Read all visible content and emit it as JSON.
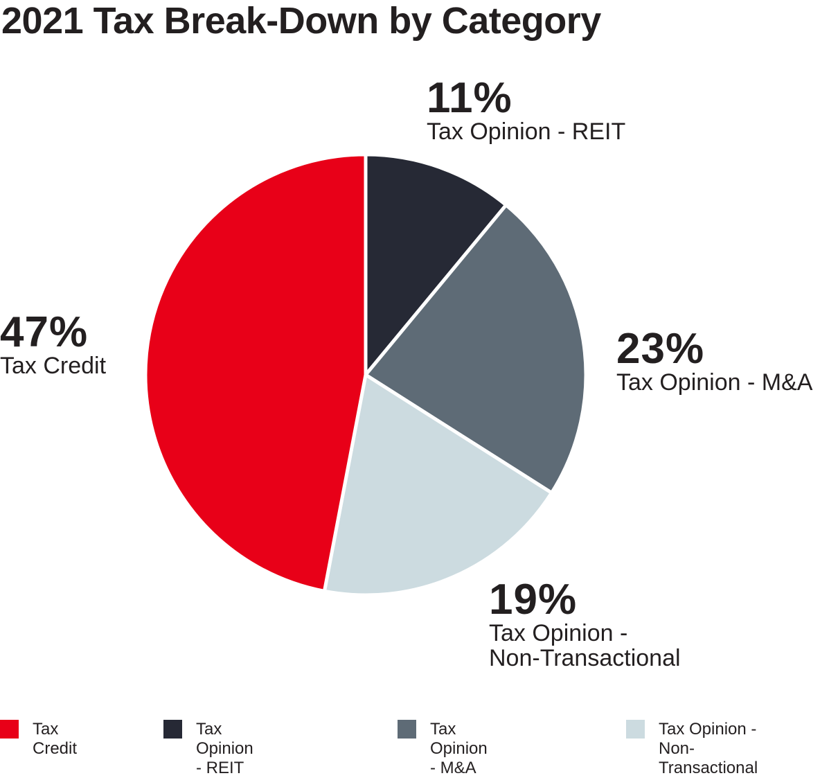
{
  "chart_data": {
    "type": "pie",
    "title": "2021 Tax Break-Down by Category",
    "slices": [
      {
        "label": "Tax Opinion - REIT",
        "value": 11,
        "display": "11%",
        "color": "#262935"
      },
      {
        "label": "Tax Opinion - M&A",
        "value": 23,
        "display": "23%",
        "color": "#5e6b76"
      },
      {
        "label": "Tax Opinion - Non-Transactional",
        "value": 19,
        "display": "19%",
        "color": "#ccdbe0",
        "wrapped_label": "Tax Opinion -\nNon-Transactional"
      },
      {
        "label": "Tax Credit",
        "value": 47,
        "display": "47%",
        "color": "#e80018"
      }
    ],
    "legend": {
      "position": "bottom",
      "items": [
        {
          "label": "Tax Credit",
          "color": "#e80018"
        },
        {
          "label": "Tax Opinion - REIT",
          "color": "#262935"
        },
        {
          "label": "Tax Opinion - M&A",
          "color": "#5e6b76"
        },
        {
          "label": "Tax Opinion -\nNon-Transactional",
          "color": "#ccdbe0"
        }
      ]
    }
  }
}
